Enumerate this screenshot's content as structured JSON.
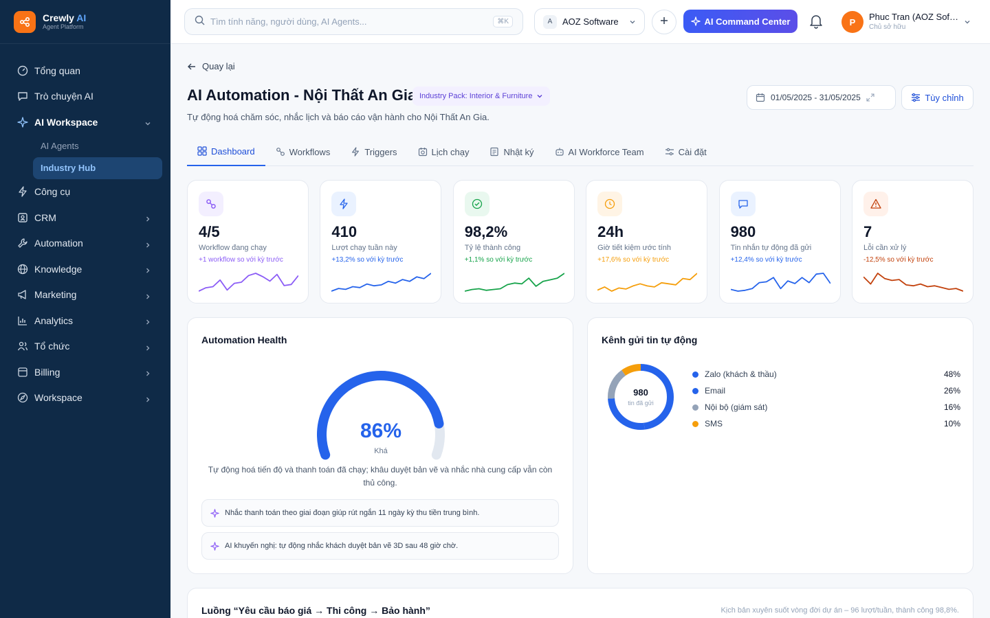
{
  "brand": {
    "name": "Crewly",
    "name_ai": "AI",
    "sub": "Agent Platform"
  },
  "sidebar": {
    "items": [
      {
        "label": "Tổng quan",
        "icon": "gauge-icon"
      },
      {
        "label": "Trò chuyện AI",
        "icon": "chat-icon"
      },
      {
        "label": "AI Workspace",
        "icon": "sparkle-icon"
      },
      {
        "label": "Công cụ",
        "icon": "bolt-icon"
      },
      {
        "label": "CRM",
        "icon": "contact-icon"
      },
      {
        "label": "Automation",
        "icon": "wrench-icon"
      },
      {
        "label": "Knowledge",
        "icon": "globe-icon"
      },
      {
        "label": "Marketing",
        "icon": "megaphone-icon"
      },
      {
        "label": "Analytics",
        "icon": "chart-icon"
      },
      {
        "label": "Tổ chức",
        "icon": "users-icon"
      },
      {
        "label": "Billing",
        "icon": "card-icon"
      },
      {
        "label": "Workspace",
        "icon": "compass-icon"
      }
    ],
    "sub_items": [
      "AI Agents",
      "Industry Hub"
    ]
  },
  "topbar": {
    "search_placeholder": "Tìm tính năng, người dùng, AI Agents...",
    "shortcut": "⌘K",
    "org_badge": "A",
    "org_name": "AOZ Software",
    "command_label": "AI Command Center",
    "user_initial": "P",
    "user_name": "Phuc Tran (AOZ Software)",
    "user_role": "Chủ sở hữu"
  },
  "page": {
    "back_label": "Quay lại",
    "title": "AI Automation - Nội Thất An Gia",
    "pack_label": "Industry Pack: Interior & Furniture",
    "subtitle": "Tự động hoá chăm sóc, nhắc lịch và báo cáo vận hành cho Nội Thất An Gia.",
    "date_range": "01/05/2025 - 31/05/2025",
    "customize_label": "Tùy chỉnh"
  },
  "tabs": [
    {
      "label": "Dashboard",
      "icon": "grid-icon"
    },
    {
      "label": "Workflows",
      "icon": "workflow-icon"
    },
    {
      "label": "Triggers",
      "icon": "bolt-icon"
    },
    {
      "label": "Lịch chạy",
      "icon": "calendar-clock-icon"
    },
    {
      "label": "Nhật ký",
      "icon": "log-icon"
    },
    {
      "label": "AI Workforce Team",
      "icon": "bot-icon"
    },
    {
      "label": "Cài đặt",
      "icon": "sliders-icon"
    }
  ],
  "kpis": [
    {
      "value": "4/5",
      "label": "Workflow đang chạy",
      "delta": "+1 workflow so với kỳ trước",
      "color": "#8b5cf6",
      "bg": "#f3efff",
      "icon": "workflow-icon",
      "spark": [
        8,
        11,
        12,
        18,
        9,
        15,
        16,
        22,
        24,
        21,
        17,
        23,
        13,
        14,
        22
      ]
    },
    {
      "value": "410",
      "label": "Lượt chạy tuần này",
      "delta": "+13,2% so với kỳ trước",
      "color": "#2563eb",
      "bg": "#eaf2ff",
      "icon": "bolt-icon",
      "spark": [
        6,
        9,
        8,
        11,
        10,
        14,
        12,
        13,
        17,
        15,
        19,
        17,
        22,
        20,
        26
      ]
    },
    {
      "value": "98,2%",
      "label": "Tỷ lệ thành công",
      "delta": "+1,1% so với kỳ trước",
      "color": "#16a34a",
      "bg": "#e9f8ef",
      "icon": "check-circle-icon",
      "spark": [
        6,
        8,
        9,
        7,
        8,
        9,
        14,
        16,
        15,
        22,
        12,
        18,
        20,
        22,
        28
      ]
    },
    {
      "value": "24h",
      "label": "Giờ tiết kiệm ước tính",
      "delta": "+17,6% so với kỳ trước",
      "color": "#f59e0b",
      "bg": "#fff4e5",
      "icon": "clock-icon",
      "spark": [
        8,
        11,
        7,
        10,
        9,
        12,
        14,
        12,
        11,
        15,
        14,
        13,
        19,
        18,
        24
      ]
    },
    {
      "value": "980",
      "label": "Tin nhắn tự động đã gửi",
      "delta": "+12,4% so với kỳ trước",
      "color": "#2563eb",
      "bg": "#eaf2ff",
      "icon": "message-icon",
      "spark": [
        8,
        6,
        7,
        9,
        16,
        17,
        22,
        9,
        18,
        15,
        22,
        16,
        26,
        27,
        15
      ]
    },
    {
      "value": "7",
      "label": "Lỗi cần xử lý",
      "delta": "-12,5% so với kỳ trước",
      "color": "#c2410c",
      "bg": "#fff1ea",
      "icon": "alert-icon",
      "spark": [
        22,
        14,
        26,
        20,
        18,
        19,
        13,
        12,
        14,
        11,
        12,
        10,
        8,
        9,
        6
      ]
    }
  ],
  "health": {
    "title": "Automation Health",
    "value": "86%",
    "level": 0.86,
    "label": "Khá",
    "description": "Tự động hoá tiến độ và thanh toán đã chạy; khâu duyệt bản vẽ và nhắc nhà cung cấp vẫn còn thủ công.",
    "insights": [
      "Nhắc thanh toán theo giai đoạn giúp rút ngắn 11 ngày kỳ thu tiền trung bình.",
      "AI khuyến nghị: tự động nhắc khách duyệt bản vẽ 3D sau 48 giờ chờ."
    ]
  },
  "channels": {
    "title": "Kênh gửi tin tự động",
    "total": "980",
    "total_label": "tin đã gửi",
    "items": [
      {
        "name": "Zalo (khách & thầu)",
        "pct": "48%",
        "value": 48,
        "color": "#2563eb"
      },
      {
        "name": "Email",
        "pct": "26%",
        "value": 26,
        "color": "#2563eb"
      },
      {
        "name": "Nội bộ (giám sát)",
        "pct": "16%",
        "value": 16,
        "color": "#94a3b8"
      },
      {
        "name": "SMS",
        "pct": "10%",
        "value": 10,
        "color": "#f59e0b"
      }
    ]
  },
  "flow": {
    "title": "Luồng “Yêu cầu báo giá → Thi công → Bảo hành”",
    "note": "Kịch bản xuyên suốt vòng đời dự án – 96 lượt/tuần, thành công 98,8%."
  }
}
